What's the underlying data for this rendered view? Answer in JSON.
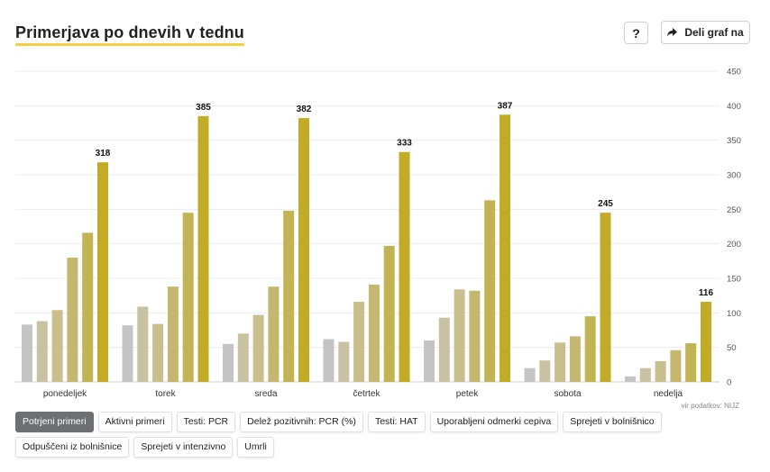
{
  "header": {
    "title": "Primerjava po dnevih v tednu",
    "help_label": "?",
    "share_label": "Deli graf na",
    "share_icon": "share-arrow-icon"
  },
  "source_note": "vir podatkov: NIJZ",
  "filters": [
    {
      "label": "Potrjeni primeri",
      "active": true
    },
    {
      "label": "Aktivni primeri",
      "active": false
    },
    {
      "label": "Testi: PCR",
      "active": false
    },
    {
      "label": "Delež pozitivnih: PCR (%)",
      "active": false
    },
    {
      "label": "Testi: HAT",
      "active": false
    },
    {
      "label": "Uporabljeni odmerki cepiva",
      "active": false
    },
    {
      "label": "Sprejeti v bolnišnico",
      "active": false
    },
    {
      "label": "Odpuščeni iz bolnišnice",
      "active": false
    },
    {
      "label": "Sprejeti v intenzivno",
      "active": false
    },
    {
      "label": "Umrli",
      "active": false
    }
  ],
  "colors": {
    "series": [
      "#c4c4c4",
      "#c9c2a2",
      "#c8bf8d",
      "#c4b870",
      "#c2b452",
      "#c2ab26"
    ],
    "accent_underline": "#f4d03f",
    "active_chip": "#6c7073"
  },
  "chart_data": {
    "type": "bar",
    "categories": [
      "ponedeljek",
      "torek",
      "sreda",
      "četrtek",
      "petek",
      "sobota",
      "nedelja"
    ],
    "series_values": [
      [
        83,
        88,
        104,
        180,
        216,
        318
      ],
      [
        82,
        109,
        84,
        138,
        245,
        385
      ],
      [
        55,
        70,
        97,
        138,
        248,
        382
      ],
      [
        62,
        58,
        116,
        141,
        197,
        333
      ],
      [
        60,
        93,
        134,
        132,
        263,
        387
      ],
      [
        20,
        31,
        57,
        66,
        95,
        245
      ],
      [
        8,
        20,
        30,
        46,
        56,
        116
      ]
    ],
    "highlight_labels": [
      "318",
      "385",
      "382",
      "333",
      "387",
      "245",
      "116"
    ],
    "yticks": [
      "0",
      "50",
      "100",
      "150",
      "200",
      "250",
      "300",
      "350",
      "400",
      "450"
    ],
    "ylim": [
      0,
      450
    ],
    "grid": true,
    "y_axis_position": "right"
  }
}
